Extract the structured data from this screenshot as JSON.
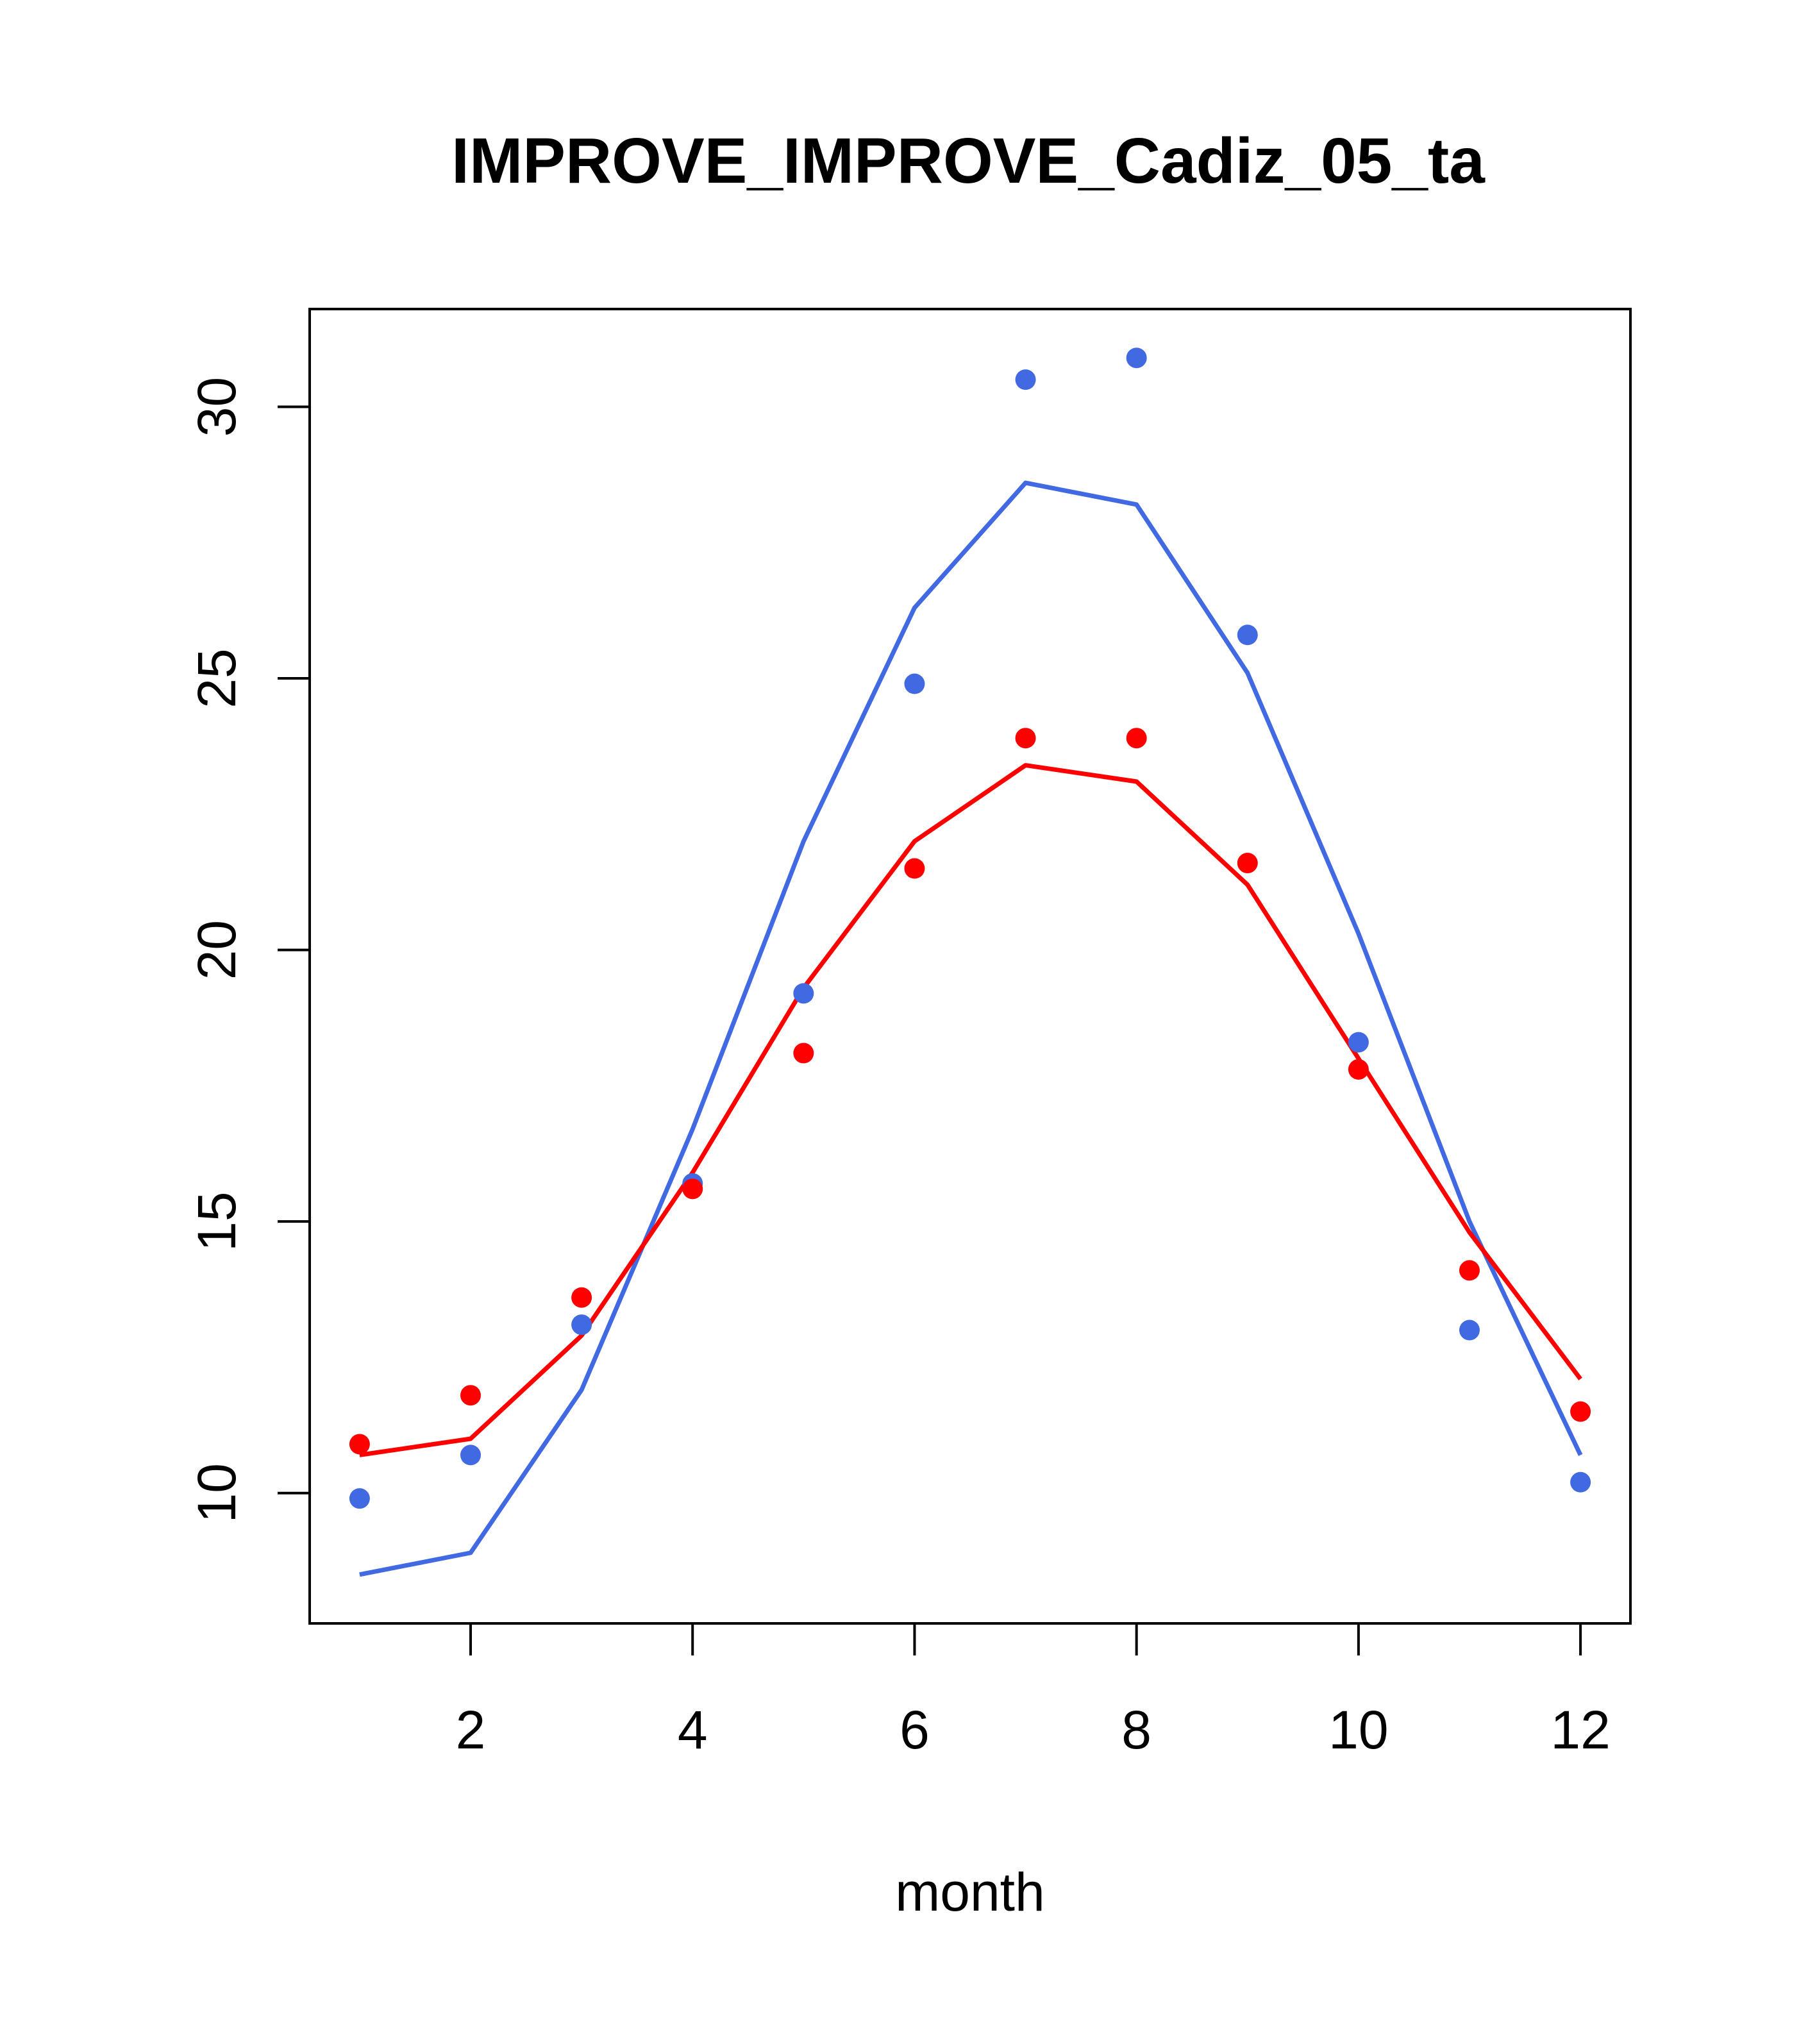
{
  "chart_data": {
    "type": "line",
    "title": "IMPROVE_IMPROVE_Cadiz_05_ta",
    "xlabel": "month",
    "ylabel": "",
    "xlim": [
      0.55,
      12.45
    ],
    "ylim": [
      7.6,
      31.8
    ],
    "x_ticks": [
      2,
      4,
      6,
      8,
      10,
      12
    ],
    "y_ticks": [
      10,
      15,
      20,
      25,
      30
    ],
    "x": [
      1,
      2,
      3,
      4,
      5,
      6,
      7,
      8,
      9,
      10,
      11,
      12
    ],
    "series": [
      {
        "name": "blue-points",
        "kind": "points",
        "color": "#4169e1",
        "values": [
          9.9,
          10.7,
          13.1,
          15.7,
          19.2,
          24.9,
          30.5,
          30.9,
          25.8,
          18.3,
          13.0,
          10.2
        ]
      },
      {
        "name": "red-points",
        "kind": "points",
        "color": "#ff0000",
        "values": [
          10.9,
          11.8,
          13.6,
          15.6,
          18.1,
          21.5,
          23.9,
          23.9,
          21.6,
          17.8,
          14.1,
          11.5
        ]
      },
      {
        "name": "blue-line",
        "kind": "line",
        "color": "#4169e1",
        "values": [
          8.5,
          8.9,
          11.9,
          16.7,
          22.0,
          26.3,
          28.6,
          28.2,
          25.1,
          20.3,
          15.0,
          10.7
        ]
      },
      {
        "name": "red-line",
        "kind": "line",
        "color": "#ff0000",
        "values": [
          10.7,
          11.0,
          12.9,
          15.9,
          19.3,
          22.0,
          23.4,
          23.1,
          21.2,
          18.0,
          14.8,
          12.1
        ]
      }
    ]
  }
}
